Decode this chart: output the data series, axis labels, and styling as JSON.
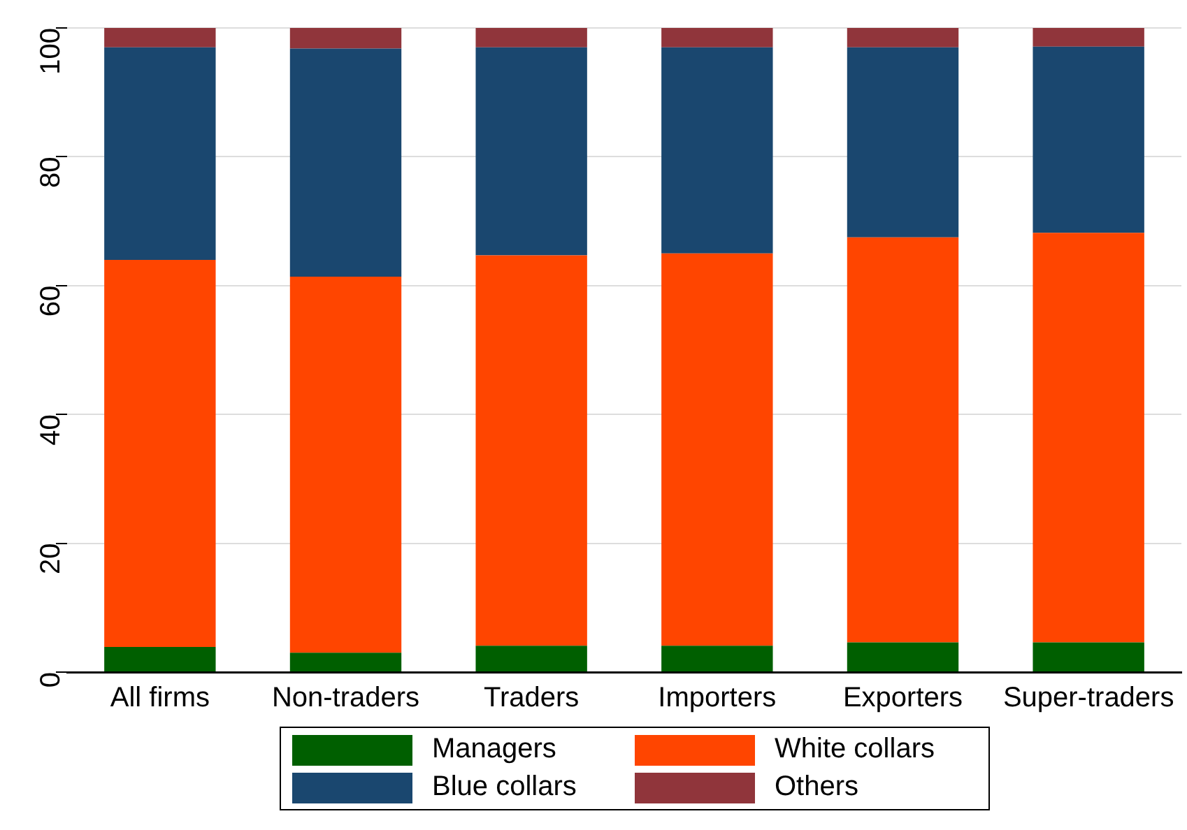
{
  "chart_data": {
    "type": "bar",
    "stacked": true,
    "categories": [
      "All firms",
      "Non-traders",
      "Traders",
      "Importers",
      "Exporters",
      "Super-traders"
    ],
    "series": [
      {
        "name": "Managers",
        "color": "#005f00",
        "values": [
          3.9,
          3.0,
          4.1,
          4.1,
          4.6,
          4.6
        ]
      },
      {
        "name": "White collars",
        "color": "#ff4500",
        "values": [
          60.1,
          58.4,
          60.6,
          60.9,
          62.9,
          63.6
        ]
      },
      {
        "name": "Blue collars",
        "color": "#1a476f",
        "values": [
          33.0,
          35.4,
          32.3,
          32.0,
          29.5,
          28.9
        ]
      },
      {
        "name": "Others",
        "color": "#90353b",
        "values": [
          3.0,
          3.2,
          3.0,
          3.0,
          3.0,
          2.9
        ]
      }
    ],
    "ylim": [
      0,
      100
    ],
    "yticks": [
      0,
      20,
      40,
      60,
      80,
      100
    ],
    "grid": "y",
    "legend": "bottom"
  }
}
